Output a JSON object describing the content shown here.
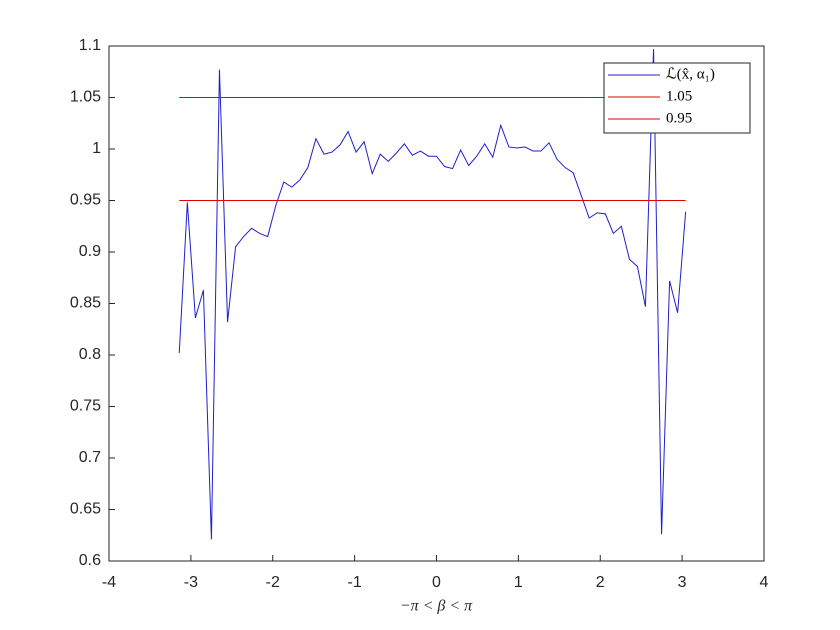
{
  "chart_data": {
    "type": "line",
    "xlabel": "−π < β < π",
    "xlim": [
      -4,
      4
    ],
    "xticks": [
      -4,
      -3,
      -2,
      -1,
      0,
      1,
      2,
      3,
      4
    ],
    "ylim": [
      0.6,
      1.1
    ],
    "yticks": [
      0.6,
      0.65,
      0.7,
      0.75,
      0.8,
      0.85,
      0.9,
      0.95,
      1,
      1.05,
      1.1
    ],
    "grid": false,
    "legend": "top-right",
    "series": [
      {
        "name": "ℒ(x̂, α₁)",
        "color": "#1f1fcc",
        "x": [
          -3.142,
          -3.043,
          -2.945,
          -2.847,
          -2.749,
          -2.651,
          -2.552,
          -2.454,
          -2.356,
          -2.258,
          -2.16,
          -2.062,
          -1.963,
          -1.865,
          -1.767,
          -1.669,
          -1.571,
          -1.473,
          -1.374,
          -1.276,
          -1.178,
          -1.08,
          -0.982,
          -0.884,
          -0.785,
          -0.687,
          -0.589,
          -0.491,
          -0.393,
          -0.295,
          -0.196,
          -0.098,
          0,
          0.098,
          0.196,
          0.295,
          0.393,
          0.491,
          0.589,
          0.687,
          0.785,
          0.884,
          0.982,
          1.08,
          1.178,
          1.276,
          1.374,
          1.473,
          1.571,
          1.669,
          1.767,
          1.865,
          1.963,
          2.062,
          2.16,
          2.258,
          2.356,
          2.454,
          2.552,
          2.651,
          2.749,
          2.847,
          2.945,
          3.043
        ],
        "values": [
          0.802,
          0.948,
          0.836,
          0.863,
          0.621,
          1.077,
          0.832,
          0.905,
          0.915,
          0.923,
          0.918,
          0.915,
          0.945,
          0.968,
          0.963,
          0.97,
          0.982,
          1.01,
          0.995,
          0.997,
          1.004,
          1.017,
          0.997,
          1.007,
          0.976,
          0.995,
          0.988,
          0.996,
          1.005,
          0.994,
          0.998,
          0.993,
          0.993,
          0.983,
          0.981,
          0.999,
          0.984,
          0.993,
          1.005,
          0.992,
          1.023,
          1.002,
          1.001,
          1.002,
          0.998,
          0.998,
          1.006,
          0.99,
          0.982,
          0.977,
          0.955,
          0.933,
          0.938,
          0.937,
          0.918,
          0.925,
          0.893,
          0.886,
          0.847,
          1.097,
          0.626,
          0.872,
          0.841,
          0.939
        ]
      },
      {
        "name": "1.05",
        "color": "#e00000",
        "x": [
          -3.142,
          3.043
        ],
        "values": [
          1.05,
          1.05
        ]
      },
      {
        "name": "0.95",
        "color": "#e00000",
        "x": [
          -3.142,
          3.043
        ],
        "values": [
          0.95,
          0.95
        ]
      }
    ]
  }
}
